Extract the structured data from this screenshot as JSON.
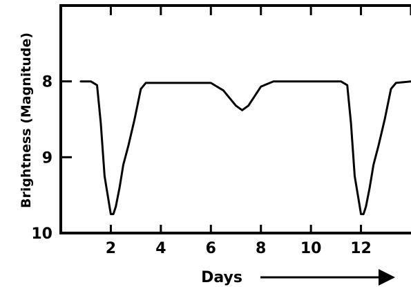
{
  "chart_data": {
    "type": "line",
    "title": "",
    "xlabel": "Days",
    "ylabel": "Brightness  (Magnitude)",
    "xlim": [
      0,
      14
    ],
    "ylim": [
      7,
      10
    ],
    "y_inverted": true,
    "x_ticks": [
      2,
      4,
      6,
      8,
      10,
      12
    ],
    "y_ticks": [
      8,
      9,
      10
    ],
    "grid": false,
    "legend": "none",
    "colors": {
      "line": "#000000",
      "axes": "#000000",
      "background": "#ffffff"
    },
    "series": [
      {
        "x": [
          0.8,
          1.2,
          1.45,
          1.6,
          1.75,
          1.9,
          2.0,
          2.1,
          2.2,
          2.35,
          2.5,
          2.7,
          2.95,
          3.2,
          3.4,
          6.0,
          6.5,
          7.0,
          7.25,
          7.5,
          8.0,
          8.5,
          11.2,
          11.45,
          11.6,
          11.75,
          11.9,
          12.0,
          12.1,
          12.2,
          12.35,
          12.5,
          12.7,
          12.95,
          13.2,
          13.4,
          14.0
        ],
        "y": [
          8.0,
          8.0,
          8.05,
          8.55,
          9.25,
          9.55,
          9.75,
          9.75,
          9.65,
          9.4,
          9.1,
          8.85,
          8.5,
          8.1,
          8.02,
          8.02,
          8.12,
          8.32,
          8.38,
          8.32,
          8.07,
          8.0,
          8.0,
          8.05,
          8.55,
          9.25,
          9.55,
          9.75,
          9.75,
          9.65,
          9.4,
          9.1,
          8.85,
          8.5,
          8.1,
          8.02,
          8.0
        ]
      }
    ]
  }
}
